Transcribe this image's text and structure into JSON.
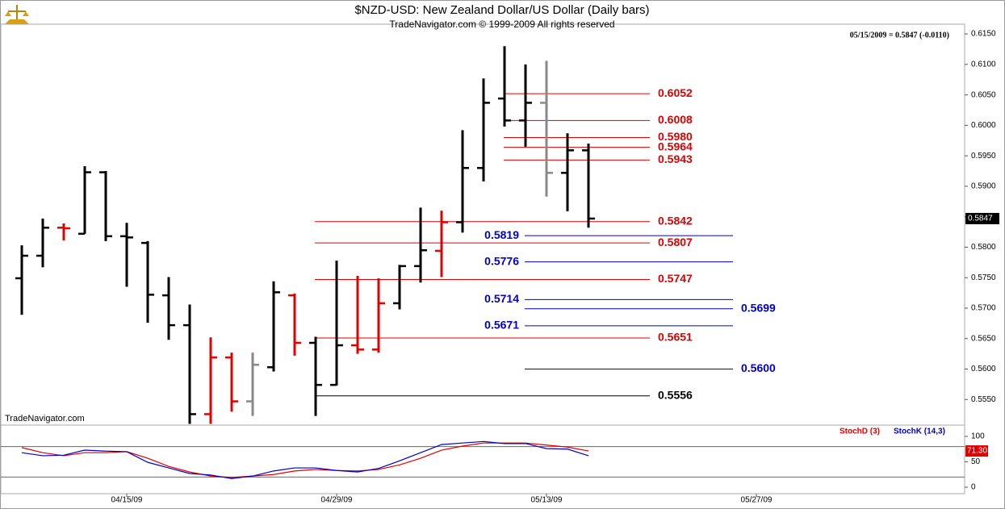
{
  "chart_data": [
    {
      "type": "ohlc",
      "title": "$NZD-USD:  New Zealand Dollar/US Dollar  (Daily bars)",
      "subtitle": "TradeNavigator.com © 1999-2009 All rights reserved",
      "header": "05/15/2009 = 0.5847 (-0.0110)",
      "watermark": "TradeNavigator.com",
      "x": [
        "04/08/09",
        "04/09/09",
        "04/10/09",
        "04/13/09",
        "04/14/09",
        "04/15/09",
        "04/16/09",
        "04/17/09",
        "04/20/09",
        "04/21/09",
        "04/22/09",
        "04/23/09",
        "04/24/09",
        "04/27/09",
        "04/28/09",
        "04/29/09",
        "04/30/09",
        "05/01/09",
        "05/04/09",
        "05/05/09",
        "05/06/09",
        "05/07/09",
        "05/08/09",
        "05/11/09",
        "05/12/09",
        "05/13/09",
        "05/14/09",
        "05/15/09"
      ],
      "open": [
        0.5749,
        0.5786,
        0.5832,
        0.5822,
        0.5923,
        0.5818,
        0.5807,
        0.5721,
        0.5672,
        0.5526,
        0.5619,
        0.5547,
        0.5603,
        0.5721,
        0.5643,
        0.5574,
        0.5639,
        0.5632,
        0.5708,
        0.5769,
        0.5794,
        0.5841,
        0.593,
        0.6044,
        0.6008,
        0.6037,
        0.5922,
        0.5959
      ],
      "high": [
        0.5803,
        0.5847,
        0.5839,
        0.5933,
        0.5925,
        0.584,
        0.581,
        0.5751,
        0.5706,
        0.5652,
        0.5627,
        0.5627,
        0.5744,
        0.5724,
        0.5653,
        0.5778,
        0.5753,
        0.5749,
        0.5771,
        0.5865,
        0.586,
        0.5992,
        0.6077,
        0.613,
        0.61,
        0.6106,
        0.5987,
        0.597
      ],
      "low": [
        0.5689,
        0.5767,
        0.5811,
        0.5822,
        0.581,
        0.5735,
        0.5676,
        0.5648,
        0.551,
        0.551,
        0.553,
        0.5523,
        0.5596,
        0.5622,
        0.5523,
        0.5573,
        0.5625,
        0.5627,
        0.5698,
        0.5742,
        0.5751,
        0.5824,
        0.5908,
        0.5998,
        0.5965,
        0.5883,
        0.5859,
        0.5832
      ],
      "close": [
        0.5786,
        0.5832,
        0.5831,
        0.5923,
        0.5818,
        0.5816,
        0.5722,
        0.5672,
        0.5526,
        0.5619,
        0.5547,
        0.5607,
        0.5726,
        0.5643,
        0.5574,
        0.5639,
        0.5632,
        0.5708,
        0.5769,
        0.5795,
        0.5841,
        0.593,
        0.6037,
        0.6008,
        0.6037,
        0.5922,
        0.5959,
        0.5847
      ],
      "colors": [
        "#000000",
        "#000000",
        "#e00000",
        "#000000",
        "#000000",
        "#000000",
        "#000000",
        "#000000",
        "#000000",
        "#e00000",
        "#e00000",
        "#888888",
        "#000000",
        "#e00000",
        "#000000",
        "#000000",
        "#e00000",
        "#e00000",
        "#000000",
        "#000000",
        "#e00000",
        "#000000",
        "#000000",
        "#000000",
        "#000000",
        "#888888",
        "#000000",
        "#000000"
      ],
      "levels": [
        {
          "value": 0.6052,
          "color": "#e00000"
        },
        {
          "value": 0.6008,
          "color": "#e00000"
        },
        {
          "value": 0.598,
          "label": "0.5980",
          "color": "#e00000"
        },
        {
          "value": 0.5964,
          "color": "#e00000"
        },
        {
          "value": 0.5943,
          "color": "#e00000"
        },
        {
          "value": 0.5842,
          "color": "#e00000"
        },
        {
          "value": 0.5819,
          "color": "#0000cc"
        },
        {
          "value": 0.5807,
          "color": "#e00000"
        },
        {
          "value": 0.5776,
          "color": "#0000cc"
        },
        {
          "value": 0.5747,
          "color": "#e00000"
        },
        {
          "value": 0.5714,
          "color": "#0000cc"
        },
        {
          "value": 0.5699,
          "color": "#0000cc"
        },
        {
          "value": 0.5671,
          "color": "#0000cc"
        },
        {
          "value": 0.5651,
          "color": "#e00000"
        },
        {
          "value": 0.56,
          "label": "0.5600",
          "color": "#0000cc"
        },
        {
          "value": 0.5556,
          "color": "#000000"
        }
      ],
      "ylim": [
        0.5508,
        0.6166
      ],
      "yticks": [
        {
          "value": 0.555,
          "label": "0.5550"
        },
        {
          "value": 0.56,
          "label": "0.5600"
        },
        {
          "value": 0.565,
          "label": "0.5650"
        },
        {
          "value": 0.57,
          "label": "0.5700"
        },
        {
          "value": 0.575,
          "label": "0.5750"
        },
        {
          "value": 0.58,
          "label": "0.5800"
        },
        {
          "value": 0.585,
          "label": "0.5850"
        },
        {
          "value": 0.59,
          "label": "0.5900"
        },
        {
          "value": 0.595,
          "label": "0.5950"
        },
        {
          "value": 0.6,
          "label": "0.6000"
        },
        {
          "value": 0.605,
          "label": "0.6050"
        },
        {
          "value": 0.61,
          "label": "0.6100"
        },
        {
          "value": 0.615,
          "label": "0.6150"
        }
      ],
      "xticks": [
        "04/15/09",
        "04/29/09",
        "05/13/09",
        "05/27/09"
      ]
    },
    {
      "type": "line",
      "series": [
        {
          "name": "StochD (3)",
          "color": "#e00000",
          "values": [
            78,
            68,
            62,
            68,
            68,
            70,
            57,
            41,
            30,
            22,
            19,
            22,
            25,
            32,
            35,
            33,
            32,
            35,
            44,
            57,
            73,
            81,
            87,
            87,
            87,
            83,
            79,
            71.3
          ],
          "value_labels": [
            null,
            null,
            null,
            null,
            null,
            null,
            null,
            null,
            null,
            null,
            null,
            null,
            null,
            null,
            null,
            null,
            null,
            null,
            null,
            null,
            null,
            null,
            null,
            null,
            null,
            null,
            null,
            "71.30"
          ]
        },
        {
          "name": "StochK (14,3)",
          "color": "#0000cc",
          "values": [
            68,
            62,
            63,
            73,
            71,
            70,
            49,
            38,
            27,
            24,
            17,
            22,
            32,
            38,
            38,
            33,
            30,
            37,
            52,
            68,
            84,
            87,
            90,
            86,
            86,
            76,
            75,
            62
          ]
        }
      ],
      "guides": [
        20,
        80
      ],
      "ylim": [
        -12.7,
        117.5
      ],
      "yticks": [
        0,
        50,
        100
      ]
    }
  ]
}
